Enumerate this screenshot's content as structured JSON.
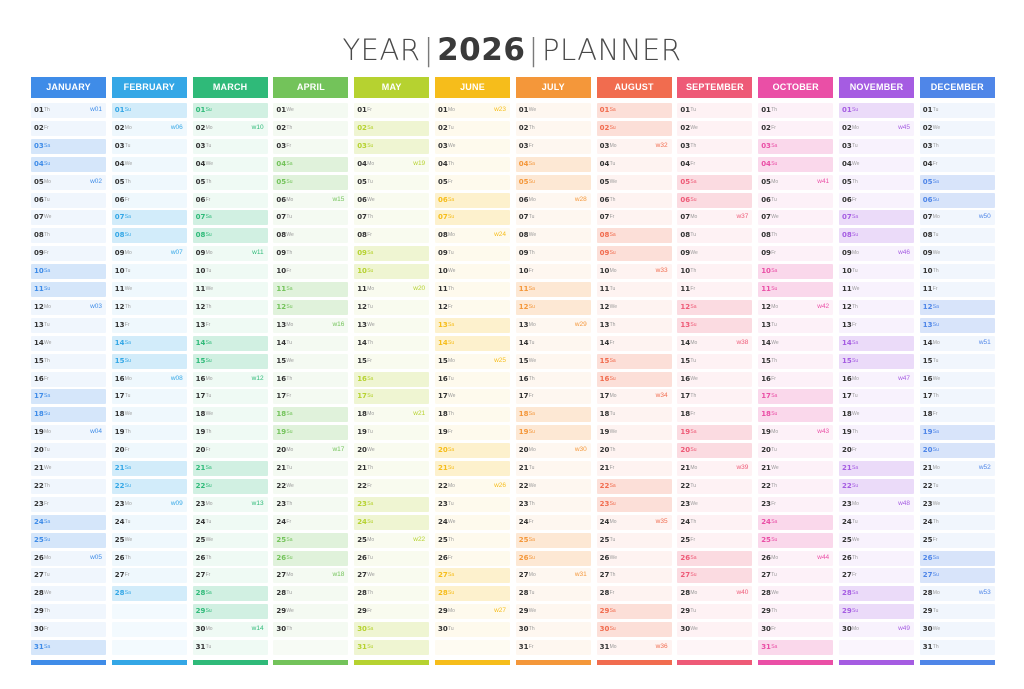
{
  "title": {
    "year": "YEAR",
    "number": "2026",
    "planner": "PLANNER"
  },
  "months": [
    {
      "name": "JANUARY",
      "color": "#3f8ce8",
      "first_dow": 4,
      "days": 31,
      "weeks": {
        "1": "w01",
        "5": "w02",
        "12": "w03",
        "19": "w04",
        "26": "w05"
      }
    },
    {
      "name": "FEBRUARY",
      "color": "#34a7e6",
      "first_dow": 0,
      "days": 28,
      "weeks": {
        "2": "w06",
        "9": "w07",
        "16": "w08",
        "23": "w09"
      }
    },
    {
      "name": "MARCH",
      "color": "#2fba79",
      "first_dow": 0,
      "days": 31,
      "weeks": {
        "2": "w10",
        "9": "w11",
        "16": "w12",
        "23": "w13",
        "30": "w14"
      }
    },
    {
      "name": "APRIL",
      "color": "#73c35a",
      "first_dow": 3,
      "days": 30,
      "weeks": {
        "6": "w15",
        "13": "w16",
        "20": "w17",
        "27": "w18"
      }
    },
    {
      "name": "MAY",
      "color": "#b6d230",
      "first_dow": 5,
      "days": 31,
      "weeks": {
        "4": "w19",
        "11": "w20",
        "18": "w21",
        "25": "w22"
      }
    },
    {
      "name": "JUNE",
      "color": "#f6bd1b",
      "first_dow": 1,
      "days": 30,
      "weeks": {
        "1": "w23",
        "8": "w24",
        "15": "w25",
        "22": "w26",
        "29": "w27"
      }
    },
    {
      "name": "JULY",
      "color": "#f4973a",
      "first_dow": 3,
      "days": 31,
      "weeks": {
        "6": "w28",
        "13": "w29",
        "20": "w30",
        "27": "w31"
      }
    },
    {
      "name": "AUGUST",
      "color": "#f16c4f",
      "first_dow": 6,
      "days": 31,
      "weeks": {
        "3": "w32",
        "10": "w33",
        "17": "w34",
        "24": "w35",
        "31": "w36"
      }
    },
    {
      "name": "SEPTEMBER",
      "color": "#ee5a77",
      "first_dow": 2,
      "days": 30,
      "weeks": {
        "7": "w37",
        "14": "w38",
        "21": "w39",
        "28": "w40"
      }
    },
    {
      "name": "OCTOBER",
      "color": "#ea4fa6",
      "first_dow": 4,
      "days": 31,
      "weeks": {
        "5": "w41",
        "12": "w42",
        "19": "w43",
        "26": "w44"
      }
    },
    {
      "name": "NOVEMBER",
      "color": "#a55ce2",
      "first_dow": 0,
      "days": 30,
      "weeks": {
        "2": "w45",
        "9": "w46",
        "16": "w47",
        "23": "w48",
        "30": "w49"
      }
    },
    {
      "name": "DECEMBER",
      "color": "#4f86e8",
      "first_dow": 2,
      "days": 31,
      "weeks": {
        "7": "w50",
        "14": "w51",
        "21": "w52",
        "28": "w53"
      }
    }
  ],
  "weekday_labels": [
    "Su",
    "Mo",
    "Tu",
    "We",
    "Th",
    "Fr",
    "Sa"
  ]
}
